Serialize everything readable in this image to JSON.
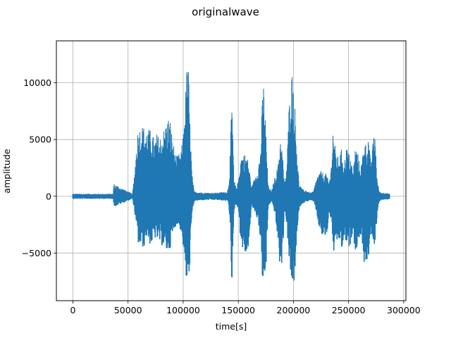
{
  "chart_data": {
    "type": "line",
    "title": "originalwave",
    "xlabel": "time[s]",
    "ylabel": "amplitude",
    "xlim": [
      -15000,
      302000
    ],
    "ylim": [
      -9200,
      13700
    ],
    "grid": true,
    "x_ticks": [
      {
        "value": 0,
        "label": "0"
      },
      {
        "value": 50000,
        "label": "50000"
      },
      {
        "value": 100000,
        "label": "100000"
      },
      {
        "value": 150000,
        "label": "150000"
      },
      {
        "value": 200000,
        "label": "200000"
      },
      {
        "value": 250000,
        "label": "250000"
      },
      {
        "value": 300000,
        "label": "300000"
      }
    ],
    "y_ticks": [
      {
        "value": -5000,
        "label": "−5000"
      },
      {
        "value": 0,
        "label": "0"
      },
      {
        "value": 5000,
        "label": "5000"
      },
      {
        "value": 10000,
        "label": "10000"
      }
    ],
    "series": [
      {
        "color": "#1f77b4",
        "x": [
          0,
          30000,
          36500,
          37000,
          54000,
          56000,
          57500,
          58500,
          60000,
          62000,
          64000,
          66000,
          68000,
          70000,
          72000,
          74000,
          76000,
          78000,
          80000,
          82000,
          84000,
          86000,
          88000,
          90000,
          92000,
          94000,
          96000,
          98000,
          100000,
          102000,
          104000,
          105000,
          106000,
          108000,
          110000,
          120000,
          130000,
          140000,
          141000,
          142000,
          143000,
          144000,
          145000,
          146000,
          148000,
          150000,
          152000,
          155000,
          158000,
          160000,
          162000,
          165000,
          168000,
          170000,
          172000,
          173000,
          175000,
          177000,
          180000,
          183000,
          186000,
          188000,
          190000,
          192000,
          194000,
          196000,
          198000,
          200000,
          202000,
          205000,
          208000,
          212000,
          215000,
          218000,
          220000,
          222000,
          225000,
          228000,
          230000,
          232000,
          234000,
          236000,
          238000,
          240000,
          242000,
          244000,
          246000,
          248000,
          250000,
          252000,
          254000,
          256000,
          258000,
          260000,
          262000,
          264000,
          266000,
          268000,
          270000,
          272000,
          274000,
          276000,
          278000,
          280000,
          284000,
          287000
        ],
        "max": [
          200,
          200,
          200,
          1100,
          200,
          2200,
          4300,
          5700,
          6000,
          6300,
          6200,
          5900,
          5900,
          5900,
          5500,
          5000,
          5500,
          5300,
          5300,
          5800,
          6300,
          7000,
          6900,
          5300,
          4200,
          3500,
          3700,
          3900,
          5500,
          9000,
          12600,
          11000,
          7000,
          2000,
          400,
          300,
          300,
          400,
          900,
          2200,
          5000,
          8600,
          6500,
          1500,
          800,
          1300,
          3500,
          3800,
          3600,
          2500,
          800,
          1700,
          2600,
          4000,
          9000,
          10100,
          6000,
          1000,
          400,
          1700,
          2700,
          5500,
          4000,
          1000,
          2900,
          8000,
          11100,
          10800,
          6500,
          1200,
          600,
          500,
          300,
          400,
          1200,
          1900,
          2200,
          2000,
          2000,
          1200,
          2300,
          6300,
          4200,
          3500,
          3600,
          4300,
          2700,
          4500,
          3800,
          3500,
          2100,
          4300,
          4100,
          2800,
          2900,
          5300,
          4500,
          5500,
          3000,
          4700,
          5900,
          1400,
          400,
          300,
          300,
          200
        ],
        "min": [
          -200,
          -200,
          -200,
          -900,
          -200,
          -1500,
          -2800,
          -3800,
          -4700,
          -4200,
          -4700,
          -3600,
          -3700,
          -4300,
          -4100,
          -3700,
          -3800,
          -4100,
          -4300,
          -4400,
          -4800,
          -5000,
          -4600,
          -3700,
          -2900,
          -2400,
          -2700,
          -3100,
          -4600,
          -7200,
          -8100,
          -7800,
          -5500,
          -1500,
          -400,
          -300,
          -300,
          -400,
          -600,
          -1800,
          -3500,
          -8200,
          -6000,
          -1200,
          -700,
          -1100,
          -4000,
          -5100,
          -5200,
          -3500,
          -800,
          -1400,
          -2200,
          -4000,
          -7800,
          -8200,
          -6500,
          -900,
          -400,
          -1500,
          -4200,
          -6900,
          -5500,
          -1000,
          -2800,
          -6000,
          -7900,
          -8000,
          -5800,
          -1000,
          -600,
          -500,
          -300,
          -500,
          -1000,
          -2300,
          -3500,
          -3600,
          -3800,
          -1500,
          -2000,
          -5000,
          -4700,
          -4000,
          -3900,
          -4900,
          -3500,
          -4300,
          -4700,
          -4100,
          -2700,
          -5500,
          -4000,
          -3600,
          -3800,
          -5900,
          -6000,
          -5400,
          -3300,
          -4300,
          -4200,
          -1300,
          -400,
          -300,
          -300,
          -200
        ]
      }
    ]
  }
}
